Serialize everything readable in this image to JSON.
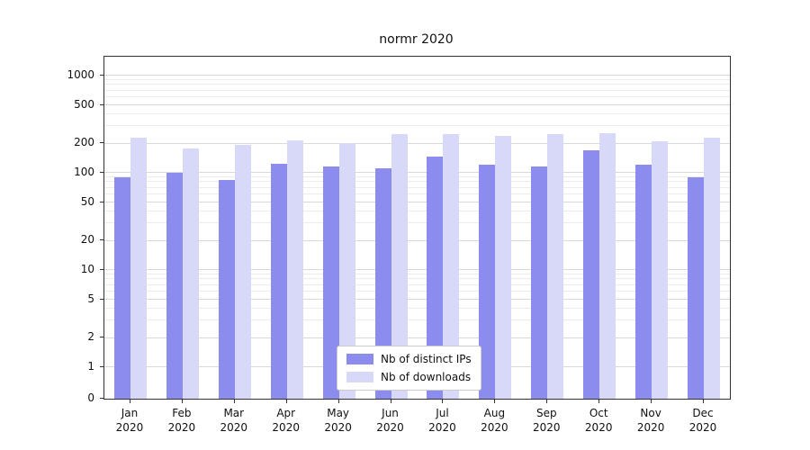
{
  "chart_data": {
    "type": "bar",
    "title": "normr 2020",
    "categories": [
      {
        "month": "Jan",
        "year": "2020"
      },
      {
        "month": "Feb",
        "year": "2020"
      },
      {
        "month": "Mar",
        "year": "2020"
      },
      {
        "month": "Apr",
        "year": "2020"
      },
      {
        "month": "May",
        "year": "2020"
      },
      {
        "month": "Jun",
        "year": "2020"
      },
      {
        "month": "Jul",
        "year": "2020"
      },
      {
        "month": "Aug",
        "year": "2020"
      },
      {
        "month": "Sep",
        "year": "2020"
      },
      {
        "month": "Oct",
        "year": "2020"
      },
      {
        "month": "Nov",
        "year": "2020"
      },
      {
        "month": "Dec",
        "year": "2020"
      }
    ],
    "series": [
      {
        "name": "Nb of distinct IPs",
        "color": "#8c8cee",
        "values": [
          90,
          100,
          85,
          125,
          115,
          112,
          148,
          120,
          115,
          172,
          120,
          90
        ]
      },
      {
        "name": "Nb of downloads",
        "color": "#d8d8f8",
        "values": [
          230,
          178,
          192,
          215,
          204,
          248,
          248,
          242,
          252,
          258,
          213,
          228
        ]
      }
    ],
    "y_axis": {
      "scale": "symlog",
      "major_ticks": [
        0,
        1,
        2,
        5,
        10,
        20,
        50,
        100,
        200,
        500,
        1000
      ],
      "minor_ticks": [
        3,
        4,
        6,
        7,
        8,
        9,
        30,
        40,
        60,
        70,
        80,
        90,
        300,
        400,
        600,
        700,
        800,
        900
      ],
      "ylim_top_approx": 1500
    },
    "legend_position": "lower center",
    "grid": true
  }
}
